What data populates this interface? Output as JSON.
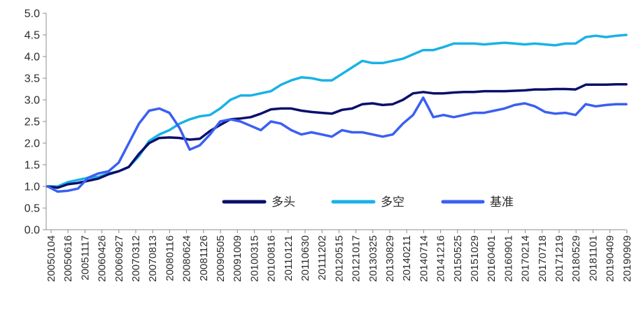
{
  "chart_data": {
    "type": "line",
    "title": "",
    "xlabel": "",
    "ylabel": "",
    "ylim": [
      0,
      5
    ],
    "y_ticks": [
      "0.0",
      "0.5",
      "1.0",
      "1.5",
      "2.0",
      "2.5",
      "3.0",
      "3.5",
      "4.0",
      "4.5",
      "5.0"
    ],
    "x_ticks": [
      "20050104",
      "20050616",
      "20051117",
      "20060426",
      "20060927",
      "20070312",
      "20070813",
      "20080116",
      "20080624",
      "20081126",
      "20090505",
      "20091009",
      "20100315",
      "20100816",
      "20110121",
      "20110630",
      "20111202",
      "20120515",
      "20121017",
      "20130325",
      "20130829",
      "20140211",
      "20140714",
      "20141216",
      "20150525",
      "20151029",
      "20160401",
      "20160901",
      "20170214",
      "20170718",
      "20171219",
      "20180529",
      "20181101",
      "20190409",
      "20190909"
    ],
    "grid": false,
    "legend_position": "bottom-right, inside plot",
    "series": [
      {
        "name": "多头",
        "color": "#0a0f6b",
        "values": [
          1.0,
          0.97,
          1.05,
          1.08,
          1.13,
          1.18,
          1.28,
          1.35,
          1.45,
          1.75,
          2.0,
          2.12,
          2.13,
          2.12,
          2.08,
          2.1,
          2.28,
          2.42,
          2.55,
          2.57,
          2.6,
          2.68,
          2.78,
          2.8,
          2.8,
          2.75,
          2.72,
          2.7,
          2.68,
          2.77,
          2.8,
          2.9,
          2.92,
          2.88,
          2.9,
          3.0,
          3.15,
          3.18,
          3.15,
          3.15,
          3.17,
          3.18,
          3.18,
          3.2,
          3.2,
          3.2,
          3.21,
          3.22,
          3.24,
          3.24,
          3.25,
          3.25,
          3.24,
          3.35,
          3.35,
          3.35,
          3.36,
          3.36
        ]
      },
      {
        "name": "多空",
        "color": "#19b2e6",
        "values": [
          1.0,
          1.0,
          1.1,
          1.15,
          1.2,
          1.22,
          1.3,
          1.35,
          1.45,
          1.7,
          2.05,
          2.2,
          2.3,
          2.45,
          2.55,
          2.62,
          2.65,
          2.8,
          3.0,
          3.1,
          3.1,
          3.15,
          3.2,
          3.35,
          3.45,
          3.52,
          3.5,
          3.45,
          3.45,
          3.6,
          3.75,
          3.9,
          3.85,
          3.85,
          3.9,
          3.95,
          4.05,
          4.15,
          4.15,
          4.22,
          4.3,
          4.3,
          4.3,
          4.28,
          4.3,
          4.32,
          4.3,
          4.28,
          4.3,
          4.28,
          4.26,
          4.3,
          4.3,
          4.45,
          4.48,
          4.45,
          4.48,
          4.5
        ]
      },
      {
        "name": "基准",
        "color": "#3a5ff2",
        "values": [
          1.0,
          0.88,
          0.9,
          0.95,
          1.2,
          1.3,
          1.35,
          1.55,
          2.0,
          2.45,
          2.75,
          2.8,
          2.7,
          2.35,
          1.85,
          1.95,
          2.2,
          2.5,
          2.55,
          2.5,
          2.4,
          2.3,
          2.5,
          2.45,
          2.3,
          2.2,
          2.25,
          2.2,
          2.15,
          2.3,
          2.25,
          2.25,
          2.2,
          2.15,
          2.2,
          2.45,
          2.65,
          3.05,
          2.6,
          2.65,
          2.6,
          2.65,
          2.7,
          2.7,
          2.75,
          2.8,
          2.88,
          2.92,
          2.85,
          2.72,
          2.68,
          2.7,
          2.65,
          2.9,
          2.85,
          2.88,
          2.9,
          2.9
        ]
      }
    ]
  }
}
